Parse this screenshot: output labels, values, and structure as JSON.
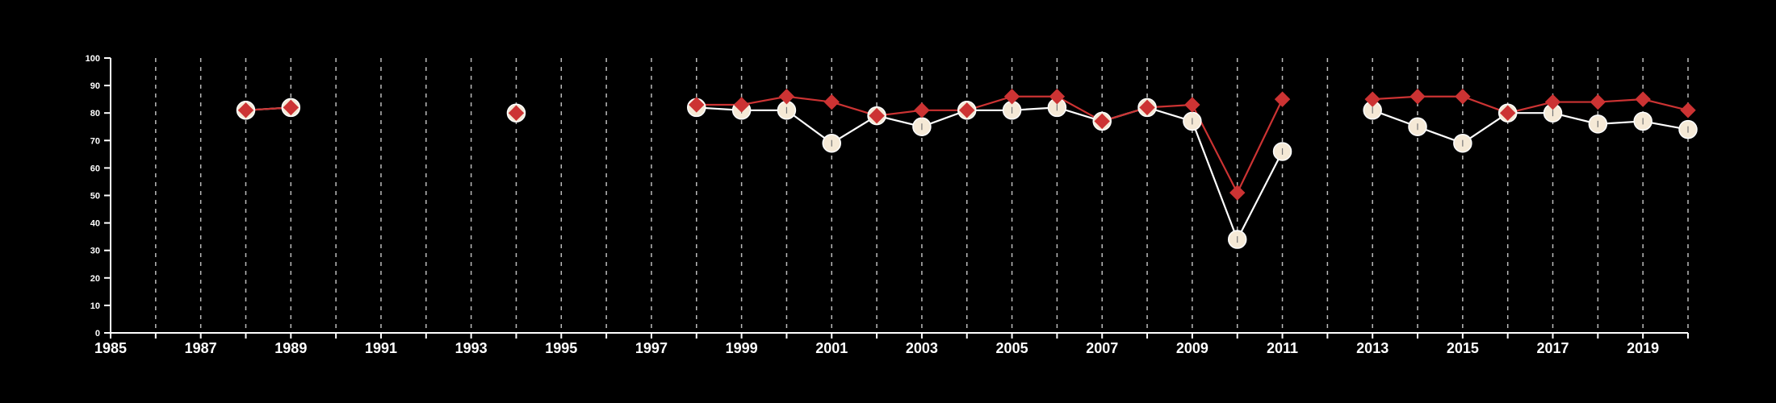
{
  "chart_data": {
    "type": "line",
    "title": "",
    "xlabel": "",
    "ylabel": "",
    "xlim": [
      1985,
      2020
    ],
    "ylim": [
      0,
      100
    ],
    "x_ticks": [
      1985,
      1987,
      1989,
      1991,
      1993,
      1995,
      1997,
      1999,
      2001,
      2003,
      2005,
      2007,
      2009,
      2011,
      2013,
      2015,
      2017,
      2019
    ],
    "y_ticks": [
      0,
      10,
      20,
      30,
      40,
      50,
      60,
      70,
      80,
      90,
      100
    ],
    "grid": "vertical dashed lines at each year",
    "legend": "none",
    "colors": {
      "background": "#000000",
      "axis": "#ffffff",
      "grid": "#bbbbbb",
      "series_red": "#cc3333",
      "series_white": "#ffffff",
      "marker_cream": "#f5e9d6"
    },
    "series": [
      {
        "marker": "circle",
        "color": "#ffffff",
        "points": [
          [
            1988,
            81
          ],
          [
            1989,
            82
          ],
          [
            1994,
            80
          ],
          [
            1998,
            82
          ],
          [
            1999,
            81
          ],
          [
            2000,
            81
          ],
          [
            2001,
            69
          ],
          [
            2002,
            79
          ],
          [
            2003,
            75
          ],
          [
            2004,
            81
          ],
          [
            2005,
            81
          ],
          [
            2006,
            82
          ],
          [
            2007,
            77
          ],
          [
            2008,
            82
          ],
          [
            2009,
            77
          ],
          [
            2010,
            34
          ],
          [
            2011,
            66
          ],
          [
            2013,
            81
          ],
          [
            2014,
            75
          ],
          [
            2015,
            69
          ],
          [
            2016,
            80
          ],
          [
            2017,
            80
          ],
          [
            2018,
            76
          ],
          [
            2019,
            77
          ],
          [
            2020,
            74
          ]
        ]
      },
      {
        "marker": "diamond",
        "color": "#cc3333",
        "points": [
          [
            1988,
            81
          ],
          [
            1989,
            82
          ],
          [
            1994,
            80
          ],
          [
            1998,
            83
          ],
          [
            1999,
            83
          ],
          [
            2000,
            86
          ],
          [
            2001,
            84
          ],
          [
            2002,
            79
          ],
          [
            2003,
            81
          ],
          [
            2004,
            81
          ],
          [
            2005,
            86
          ],
          [
            2006,
            86
          ],
          [
            2007,
            77
          ],
          [
            2008,
            82
          ],
          [
            2009,
            83
          ],
          [
            2010,
            51
          ],
          [
            2011,
            85
          ],
          [
            2013,
            85
          ],
          [
            2014,
            86
          ],
          [
            2015,
            86
          ],
          [
            2016,
            80
          ],
          [
            2017,
            84
          ],
          [
            2018,
            84
          ],
          [
            2019,
            85
          ],
          [
            2020,
            81
          ]
        ]
      }
    ]
  }
}
